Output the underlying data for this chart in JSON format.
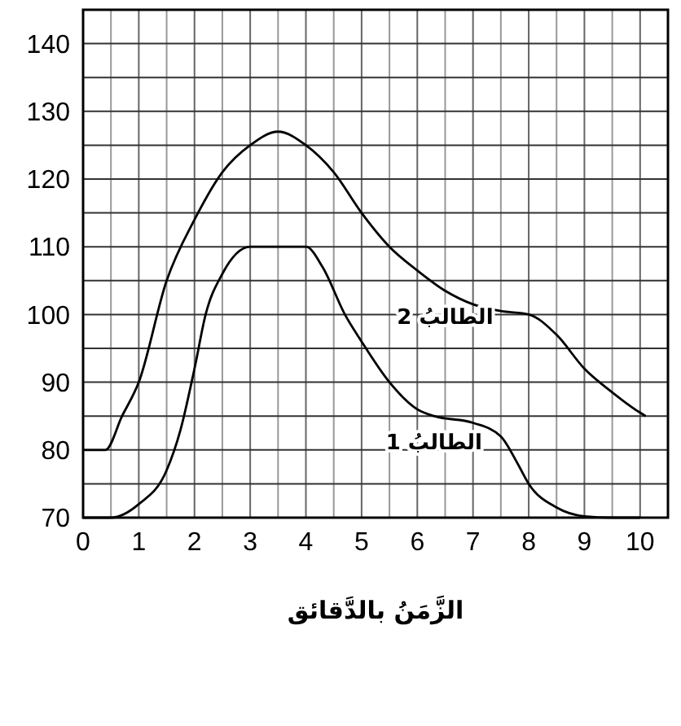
{
  "chart_data": {
    "type": "line",
    "xlabel": "الزَّمَنُ بالدَّقائق",
    "xlim": [
      0,
      10.5
    ],
    "xticks": [
      0,
      1,
      2,
      3,
      4,
      5,
      6,
      7,
      8,
      9,
      10
    ],
    "ylim": [
      70,
      145
    ],
    "yticks": [
      70,
      80,
      90,
      100,
      110,
      120,
      130,
      140
    ],
    "grid": true,
    "marker": "none",
    "line_style": "solid",
    "series": [
      {
        "name": "الطالبُ 1",
        "color": "#000000",
        "x": [
          0,
          0.5,
          1,
          1.5,
          1.75,
          2,
          2.2,
          2.5,
          3,
          4,
          4.3,
          4.7,
          5,
          5.5,
          6,
          6.3,
          7,
          7.5,
          7.8,
          8,
          8.5,
          9,
          9.5,
          10
        ],
        "values": [
          70,
          70,
          72,
          77,
          83,
          92,
          100,
          106,
          110,
          110,
          107,
          100,
          96,
          90,
          86,
          85,
          84,
          82,
          78,
          75,
          71.5,
          70.2,
          70,
          70
        ]
      },
      {
        "name": "الطالبُ 2",
        "color": "#000000",
        "x": [
          0,
          0.4,
          0.7,
          1,
          1.5,
          2,
          2.5,
          3,
          3.5,
          4,
          4.5,
          5,
          5.5,
          6,
          6.5,
          7,
          7.5,
          8,
          8.5,
          9,
          9.5,
          10,
          10.1
        ],
        "values": [
          80,
          80,
          85,
          90,
          105,
          114,
          121,
          125,
          127,
          125,
          121,
          115,
          110,
          106.5,
          103.5,
          101.5,
          100.5,
          100,
          97,
          92,
          88.5,
          85.5,
          85
        ]
      }
    ]
  }
}
